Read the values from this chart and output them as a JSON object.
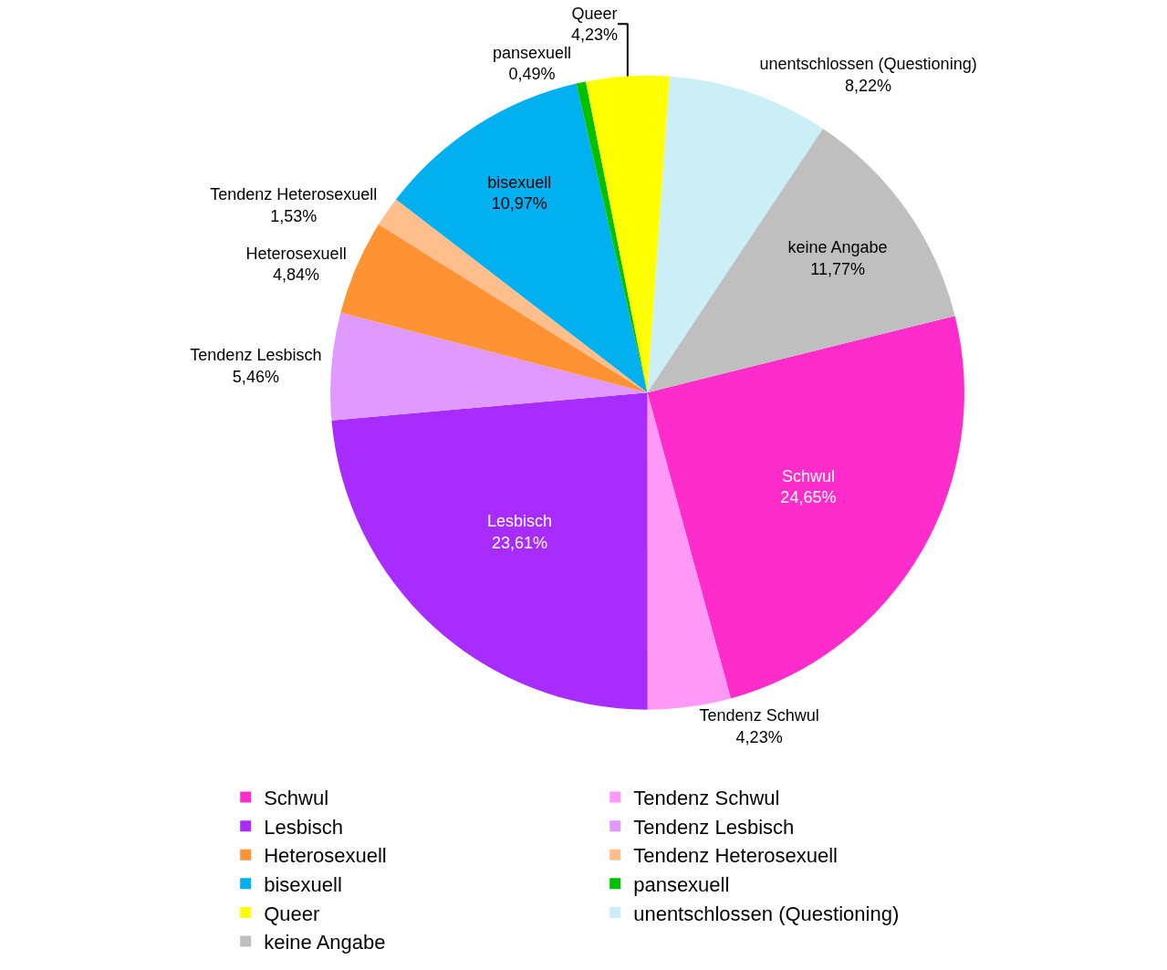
{
  "chart_data": {
    "type": "pie",
    "categories": [
      "Schwul",
      "Tendenz Schwul",
      "Lesbisch",
      "Tendenz Lesbisch",
      "Heterosexuell",
      "Tendenz Heterosexuell",
      "bisexuell",
      "pansexuell",
      "Queer",
      "unentschlossen (Questioning)",
      "keine Angabe"
    ],
    "values": [
      24.65,
      4.23,
      23.61,
      5.46,
      4.84,
      1.53,
      10.97,
      0.49,
      4.23,
      8.22,
      11.77
    ],
    "value_labels": [
      "24,65%",
      "4,23%",
      "23,61%",
      "5,46%",
      "4,84%",
      "1,53%",
      "10,97%",
      "0,49%",
      "4,23%",
      "8,22%",
      "11,77%"
    ],
    "colors": [
      "#ff2ccc",
      "#ff99f5",
      "#a82cff",
      "#e099ff",
      "#ff9233",
      "#ffbf8c",
      "#00b0ef",
      "#00c000",
      "#ffff00",
      "#cceef6",
      "#bfbfbf"
    ],
    "legend": "bottom"
  }
}
